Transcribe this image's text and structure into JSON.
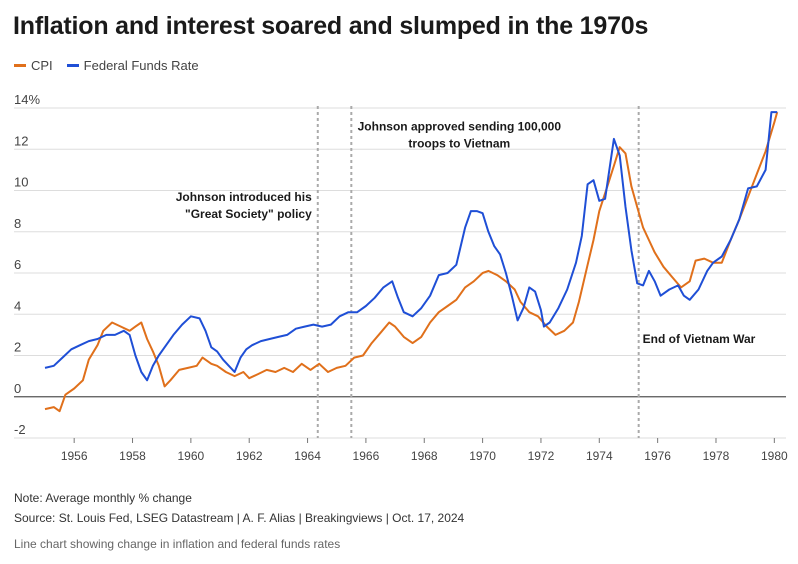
{
  "title": "Inflation and interest soared and slumped in the 1970s",
  "note": "Note: Average monthly % change",
  "source": "Source: St. Louis Fed, LSEG Datastream | A. F. Alias | Breakingviews | Oct. 17, 2024",
  "description": "Line chart showing change in inflation and federal funds rates",
  "colors": {
    "cpi": "#e0701b",
    "fed": "#1f4fd6",
    "grid": "#dddddd",
    "zero": "#555555",
    "annotation_line": "#aaaaaa"
  },
  "chart_data": {
    "type": "line",
    "y_unit_label": "14%",
    "xlim": [
      1955.0,
      1980.4
    ],
    "ylim": [
      -2,
      14
    ],
    "yticks": [
      -2,
      0,
      2,
      4,
      6,
      8,
      10,
      12,
      14
    ],
    "ytick_labels": [
      "-2",
      "0",
      "2",
      "4",
      "6",
      "8",
      "10",
      "12",
      "14%"
    ],
    "xticks": [
      1956,
      1958,
      1960,
      1962,
      1964,
      1966,
      1968,
      1970,
      1972,
      1974,
      1976,
      1978,
      1980
    ],
    "xtick_labels": [
      "1956",
      "1958",
      "1960",
      "1962",
      "1964",
      "1966",
      "1968",
      "1970",
      "1972",
      "1974",
      "1976",
      "1978",
      "1980"
    ],
    "grid": true,
    "legend_position": "top-left",
    "series": [
      {
        "name": "CPI",
        "color": "#e0701b",
        "points": [
          [
            1955.0,
            -0.6
          ],
          [
            1955.3,
            -0.5
          ],
          [
            1955.5,
            -0.7
          ],
          [
            1955.7,
            0.1
          ],
          [
            1956.0,
            0.4
          ],
          [
            1956.3,
            0.8
          ],
          [
            1956.5,
            1.8
          ],
          [
            1956.8,
            2.5
          ],
          [
            1957.0,
            3.2
          ],
          [
            1957.3,
            3.6
          ],
          [
            1957.6,
            3.4
          ],
          [
            1957.9,
            3.2
          ],
          [
            1958.1,
            3.4
          ],
          [
            1958.3,
            3.6
          ],
          [
            1958.5,
            2.8
          ],
          [
            1958.7,
            2.2
          ],
          [
            1958.9,
            1.5
          ],
          [
            1959.1,
            0.5
          ],
          [
            1959.3,
            0.8
          ],
          [
            1959.6,
            1.3
          ],
          [
            1959.9,
            1.4
          ],
          [
            1960.2,
            1.5
          ],
          [
            1960.4,
            1.9
          ],
          [
            1960.7,
            1.6
          ],
          [
            1960.9,
            1.5
          ],
          [
            1961.2,
            1.2
          ],
          [
            1961.5,
            1.0
          ],
          [
            1961.8,
            1.2
          ],
          [
            1962.0,
            0.9
          ],
          [
            1962.3,
            1.1
          ],
          [
            1962.6,
            1.3
          ],
          [
            1962.9,
            1.2
          ],
          [
            1963.2,
            1.4
          ],
          [
            1963.5,
            1.2
          ],
          [
            1963.8,
            1.6
          ],
          [
            1964.1,
            1.3
          ],
          [
            1964.4,
            1.6
          ],
          [
            1964.7,
            1.2
          ],
          [
            1965.0,
            1.4
          ],
          [
            1965.3,
            1.5
          ],
          [
            1965.6,
            1.9
          ],
          [
            1965.9,
            2.0
          ],
          [
            1966.2,
            2.6
          ],
          [
            1966.5,
            3.1
          ],
          [
            1966.8,
            3.6
          ],
          [
            1967.0,
            3.4
          ],
          [
            1967.3,
            2.9
          ],
          [
            1967.6,
            2.6
          ],
          [
            1967.9,
            2.9
          ],
          [
            1968.2,
            3.6
          ],
          [
            1968.5,
            4.1
          ],
          [
            1968.8,
            4.4
          ],
          [
            1969.1,
            4.7
          ],
          [
            1969.4,
            5.3
          ],
          [
            1969.7,
            5.6
          ],
          [
            1970.0,
            6.0
          ],
          [
            1970.2,
            6.1
          ],
          [
            1970.5,
            5.9
          ],
          [
            1970.8,
            5.6
          ],
          [
            1971.1,
            5.2
          ],
          [
            1971.3,
            4.6
          ],
          [
            1971.6,
            4.1
          ],
          [
            1971.9,
            3.9
          ],
          [
            1972.2,
            3.4
          ],
          [
            1972.5,
            3.0
          ],
          [
            1972.8,
            3.2
          ],
          [
            1973.1,
            3.6
          ],
          [
            1973.3,
            4.6
          ],
          [
            1973.6,
            6.4
          ],
          [
            1973.8,
            7.6
          ],
          [
            1974.0,
            9.0
          ],
          [
            1974.3,
            10.3
          ],
          [
            1974.5,
            11.2
          ],
          [
            1974.7,
            12.1
          ],
          [
            1974.9,
            11.8
          ],
          [
            1975.1,
            10.2
          ],
          [
            1975.3,
            9.2
          ],
          [
            1975.5,
            8.2
          ],
          [
            1975.7,
            7.6
          ],
          [
            1975.9,
            7.0
          ],
          [
            1976.2,
            6.3
          ],
          [
            1976.5,
            5.8
          ],
          [
            1976.8,
            5.3
          ],
          [
            1977.1,
            5.6
          ],
          [
            1977.3,
            6.6
          ],
          [
            1977.6,
            6.7
          ],
          [
            1977.9,
            6.5
          ],
          [
            1978.2,
            6.5
          ],
          [
            1978.5,
            7.6
          ],
          [
            1978.8,
            8.6
          ],
          [
            1979.1,
            9.7
          ],
          [
            1979.4,
            10.8
          ],
          [
            1979.7,
            11.9
          ],
          [
            1980.0,
            13.3
          ],
          [
            1980.1,
            13.8
          ]
        ]
      },
      {
        "name": "Federal Funds Rate",
        "color": "#1f4fd6",
        "points": [
          [
            1955.0,
            1.4
          ],
          [
            1955.3,
            1.5
          ],
          [
            1955.6,
            1.9
          ],
          [
            1955.9,
            2.3
          ],
          [
            1956.2,
            2.5
          ],
          [
            1956.5,
            2.7
          ],
          [
            1956.8,
            2.8
          ],
          [
            1957.1,
            3.0
          ],
          [
            1957.4,
            3.0
          ],
          [
            1957.7,
            3.2
          ],
          [
            1957.9,
            3.0
          ],
          [
            1958.1,
            2.0
          ],
          [
            1958.3,
            1.2
          ],
          [
            1958.5,
            0.8
          ],
          [
            1958.7,
            1.5
          ],
          [
            1958.9,
            2.0
          ],
          [
            1959.1,
            2.4
          ],
          [
            1959.4,
            3.0
          ],
          [
            1959.7,
            3.5
          ],
          [
            1960.0,
            3.9
          ],
          [
            1960.3,
            3.8
          ],
          [
            1960.5,
            3.2
          ],
          [
            1960.7,
            2.4
          ],
          [
            1960.9,
            2.2
          ],
          [
            1961.1,
            1.8
          ],
          [
            1961.3,
            1.5
          ],
          [
            1961.5,
            1.2
          ],
          [
            1961.7,
            1.9
          ],
          [
            1961.9,
            2.3
          ],
          [
            1962.1,
            2.5
          ],
          [
            1962.4,
            2.7
          ],
          [
            1962.7,
            2.8
          ],
          [
            1963.0,
            2.9
          ],
          [
            1963.3,
            3.0
          ],
          [
            1963.6,
            3.3
          ],
          [
            1963.9,
            3.4
          ],
          [
            1964.2,
            3.5
          ],
          [
            1964.5,
            3.4
          ],
          [
            1964.8,
            3.5
          ],
          [
            1965.1,
            3.9
          ],
          [
            1965.4,
            4.1
          ],
          [
            1965.7,
            4.1
          ],
          [
            1966.0,
            4.4
          ],
          [
            1966.3,
            4.8
          ],
          [
            1966.6,
            5.3
          ],
          [
            1966.9,
            5.6
          ],
          [
            1967.1,
            4.8
          ],
          [
            1967.3,
            4.1
          ],
          [
            1967.6,
            3.9
          ],
          [
            1967.9,
            4.3
          ],
          [
            1968.2,
            4.9
          ],
          [
            1968.5,
            5.9
          ],
          [
            1968.8,
            6.0
          ],
          [
            1969.1,
            6.4
          ],
          [
            1969.4,
            8.2
          ],
          [
            1969.6,
            9.0
          ],
          [
            1969.8,
            9.0
          ],
          [
            1970.0,
            8.9
          ],
          [
            1970.2,
            8.0
          ],
          [
            1970.4,
            7.3
          ],
          [
            1970.6,
            6.9
          ],
          [
            1970.8,
            6.0
          ],
          [
            1971.0,
            4.9
          ],
          [
            1971.2,
            3.7
          ],
          [
            1971.4,
            4.3
          ],
          [
            1971.6,
            5.3
          ],
          [
            1971.8,
            5.1
          ],
          [
            1972.0,
            4.2
          ],
          [
            1972.1,
            3.4
          ],
          [
            1972.3,
            3.6
          ],
          [
            1972.6,
            4.3
          ],
          [
            1972.9,
            5.2
          ],
          [
            1973.2,
            6.5
          ],
          [
            1973.4,
            7.8
          ],
          [
            1973.6,
            10.3
          ],
          [
            1973.8,
            10.5
          ],
          [
            1974.0,
            9.5
          ],
          [
            1974.2,
            9.6
          ],
          [
            1974.5,
            12.5
          ],
          [
            1974.7,
            11.7
          ],
          [
            1974.9,
            9.2
          ],
          [
            1975.1,
            7.1
          ],
          [
            1975.3,
            5.5
          ],
          [
            1975.5,
            5.4
          ],
          [
            1975.7,
            6.1
          ],
          [
            1975.9,
            5.6
          ],
          [
            1976.1,
            4.9
          ],
          [
            1976.4,
            5.2
          ],
          [
            1976.7,
            5.4
          ],
          [
            1976.9,
            4.9
          ],
          [
            1977.1,
            4.7
          ],
          [
            1977.4,
            5.2
          ],
          [
            1977.7,
            6.1
          ],
          [
            1977.9,
            6.5
          ],
          [
            1978.2,
            6.8
          ],
          [
            1978.5,
            7.6
          ],
          [
            1978.8,
            8.6
          ],
          [
            1979.1,
            10.1
          ],
          [
            1979.4,
            10.2
          ],
          [
            1979.7,
            11.0
          ],
          [
            1979.9,
            13.8
          ],
          [
            1980.1,
            13.8
          ]
        ]
      }
    ],
    "annotations": [
      {
        "x": 1964.35,
        "text": [
          "Johnson introduced his",
          "\"Great Society\" policy"
        ],
        "anchor": "end",
        "y": 9.5
      },
      {
        "x": 1965.5,
        "text": [
          "Johnson approved sending 100,000",
          "troops to Vietnam"
        ],
        "anchor": "middle",
        "y": 12.9
      },
      {
        "x": 1975.35,
        "text": [
          "End of Vietnam War"
        ],
        "anchor": "start",
        "y": 2.6
      }
    ]
  }
}
